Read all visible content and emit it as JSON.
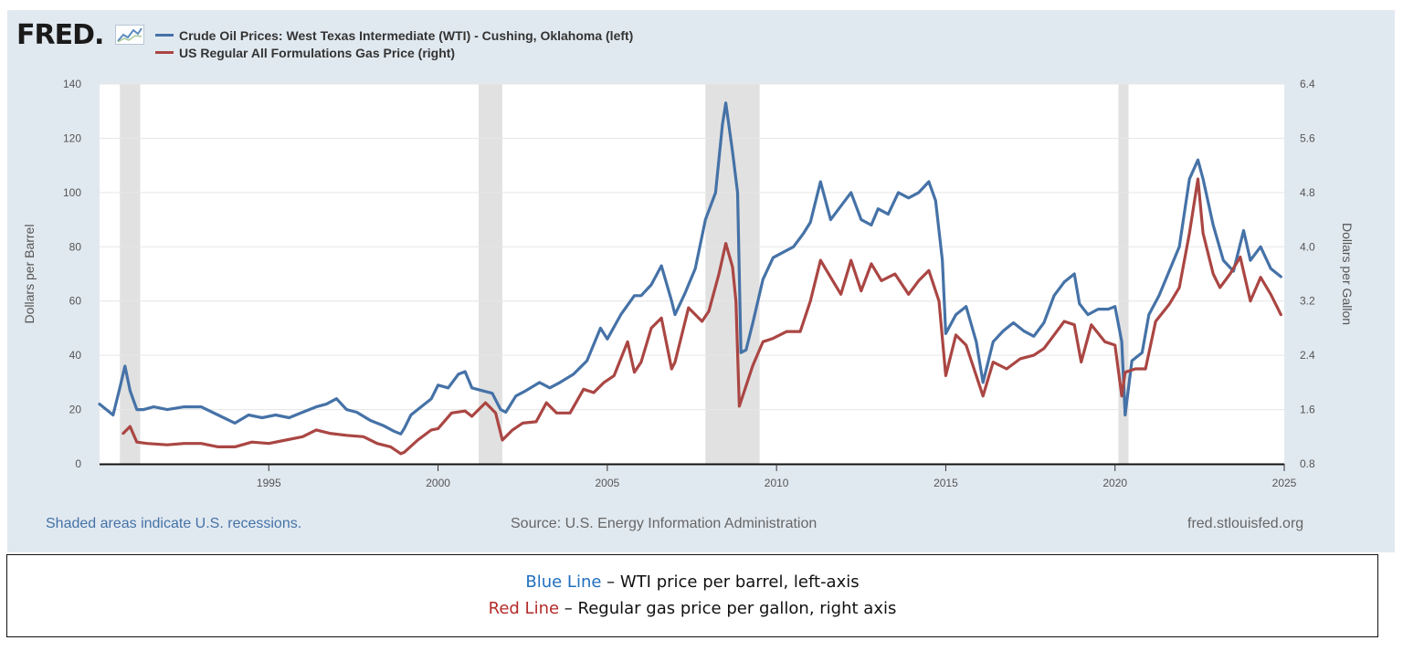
{
  "logo": {
    "text": "FRED",
    "dot": "."
  },
  "legend": [
    {
      "label": "Crude Oil Prices: West Texas Intermediate (WTI) - Cushing, Oklahoma (left)",
      "color": "#4572a7"
    },
    {
      "label": "US Regular All Formulations Gas Price (right)",
      "color": "#aa4643"
    }
  ],
  "footer": {
    "recession_note": "Shaded areas indicate U.S. recessions.",
    "source": "Source: U.S. Energy Information Administration",
    "site": "fred.stlouisfed.org"
  },
  "note_box": {
    "blue_word": "Blue Line",
    "blue_text": " – WTI price per barrel, left-axis",
    "red_word": "Red Line",
    "red_text": " – Regular gas price per gallon, right axis"
  },
  "chart_data": {
    "type": "line",
    "xlabel": "",
    "ylabel_left": "Dollars per Barrel",
    "ylabel_right": "Dollars per Gallon",
    "xlim": [
      1990.0,
      2025.0
    ],
    "ylim_left": [
      0,
      140
    ],
    "ylim_right": [
      0.8,
      6.4
    ],
    "x_ticks": [
      "1995",
      "2000",
      "2005",
      "2010",
      "2015",
      "2020",
      "2025"
    ],
    "y_ticks_left": [
      "0",
      "20",
      "40",
      "60",
      "80",
      "100",
      "120",
      "140"
    ],
    "y_ticks_right": [
      "0.8",
      "1.6",
      "2.4",
      "3.2",
      "4.0",
      "4.8",
      "5.6",
      "6.4"
    ],
    "grid": true,
    "legend_position": "top-left",
    "recessions": [
      [
        1990.6,
        1991.2
      ],
      [
        2001.2,
        2001.9
      ],
      [
        2007.9,
        2009.5
      ],
      [
        2020.1,
        2020.4
      ]
    ],
    "series": [
      {
        "name": "Crude Oil Prices: West Texas Intermediate (WTI) - Cushing, Oklahoma (left)",
        "axis": "left",
        "color": "#4572a7",
        "x": [
          1990.0,
          1990.4,
          1990.6,
          1990.75,
          1990.9,
          1991.1,
          1991.3,
          1991.6,
          1992.0,
          1992.5,
          1993.0,
          1993.5,
          1994.0,
          1994.4,
          1994.8,
          1995.2,
          1995.6,
          1996.0,
          1996.4,
          1996.7,
          1997.0,
          1997.3,
          1997.6,
          1998.0,
          1998.4,
          1998.7,
          1998.9,
          1999.0,
          1999.2,
          1999.5,
          1999.8,
          2000.0,
          2000.3,
          2000.6,
          2000.8,
          2001.0,
          2001.3,
          2001.6,
          2001.85,
          2002.0,
          2002.3,
          2002.6,
          2003.0,
          2003.3,
          2003.6,
          2004.0,
          2004.4,
          2004.8,
          2005.0,
          2005.4,
          2005.8,
          2006.0,
          2006.3,
          2006.6,
          2006.9,
          2007.0,
          2007.3,
          2007.6,
          2007.9,
          2008.2,
          2008.4,
          2008.5,
          2008.7,
          2008.85,
          2008.95,
          2009.1,
          2009.3,
          2009.6,
          2009.9,
          2010.2,
          2010.5,
          2010.8,
          2011.0,
          2011.3,
          2011.6,
          2011.9,
          2012.2,
          2012.5,
          2012.8,
          2013.0,
          2013.3,
          2013.6,
          2013.9,
          2014.2,
          2014.5,
          2014.7,
          2014.9,
          2015.0,
          2015.3,
          2015.6,
          2015.9,
          2016.1,
          2016.4,
          2016.7,
          2017.0,
          2017.3,
          2017.6,
          2017.9,
          2018.2,
          2018.5,
          2018.8,
          2018.95,
          2019.2,
          2019.5,
          2019.8,
          2020.0,
          2020.2,
          2020.3,
          2020.5,
          2020.8,
          2021.0,
          2021.3,
          2021.6,
          2021.9,
          2022.2,
          2022.45,
          2022.6,
          2022.9,
          2023.2,
          2023.5,
          2023.8,
          2024.0,
          2024.3,
          2024.6,
          2024.9
        ],
        "values": [
          22,
          18,
          28,
          36,
          27,
          20,
          20,
          21,
          20,
          21,
          21,
          18,
          15,
          18,
          17,
          18,
          17,
          19,
          21,
          22,
          24,
          20,
          19,
          16,
          14,
          12,
          11,
          13,
          18,
          21,
          24,
          29,
          28,
          33,
          34,
          28,
          27,
          26,
          20,
          19,
          25,
          27,
          30,
          28,
          30,
          33,
          38,
          50,
          46,
          55,
          62,
          62,
          66,
          73,
          60,
          55,
          63,
          72,
          90,
          100,
          125,
          133,
          115,
          100,
          41,
          42,
          52,
          68,
          76,
          78,
          80,
          85,
          89,
          104,
          90,
          95,
          100,
          90,
          88,
          94,
          92,
          100,
          98,
          100,
          104,
          97,
          75,
          48,
          55,
          58,
          45,
          30,
          45,
          49,
          52,
          49,
          47,
          52,
          62,
          67,
          70,
          59,
          55,
          57,
          57,
          58,
          45,
          18,
          38,
          41,
          55,
          62,
          71,
          80,
          105,
          112,
          105,
          88,
          75,
          71,
          86,
          75,
          80,
          72,
          69
        ]
      },
      {
        "name": "US Regular All Formulations Gas Price (right)",
        "axis": "right",
        "color": "#aa4643",
        "x": [
          1990.7,
          1990.9,
          1991.1,
          1991.4,
          1992.0,
          1992.5,
          1993.0,
          1993.5,
          1994.0,
          1994.5,
          1995.0,
          1995.5,
          1996.0,
          1996.4,
          1996.8,
          1997.3,
          1997.8,
          1998.2,
          1998.6,
          1998.9,
          1999.0,
          1999.4,
          1999.8,
          2000.0,
          2000.4,
          2000.8,
          2001.0,
          2001.4,
          2001.7,
          2001.9,
          2002.2,
          2002.5,
          2002.9,
          2003.2,
          2003.5,
          2003.9,
          2004.3,
          2004.6,
          2004.9,
          2005.2,
          2005.6,
          2005.8,
          2006.0,
          2006.3,
          2006.6,
          2006.9,
          2007.0,
          2007.4,
          2007.8,
          2008.0,
          2008.3,
          2008.5,
          2008.7,
          2008.8,
          2008.9,
          2009.0,
          2009.3,
          2009.6,
          2009.9,
          2010.3,
          2010.7,
          2011.0,
          2011.3,
          2011.6,
          2011.9,
          2012.2,
          2012.5,
          2012.8,
          2013.1,
          2013.5,
          2013.9,
          2014.2,
          2014.5,
          2014.8,
          2015.0,
          2015.3,
          2015.6,
          2015.9,
          2016.1,
          2016.4,
          2016.8,
          2017.2,
          2017.6,
          2017.9,
          2018.2,
          2018.5,
          2018.8,
          2019.0,
          2019.3,
          2019.7,
          2020.0,
          2020.2,
          2020.3,
          2020.6,
          2020.9,
          2021.2,
          2021.6,
          2021.9,
          2022.2,
          2022.45,
          2022.6,
          2022.9,
          2023.1,
          2023.4,
          2023.7,
          2024.0,
          2024.3,
          2024.6,
          2024.9
        ],
        "values": [
          1.25,
          1.35,
          1.12,
          1.1,
          1.08,
          1.1,
          1.1,
          1.05,
          1.05,
          1.12,
          1.1,
          1.15,
          1.2,
          1.3,
          1.25,
          1.22,
          1.2,
          1.1,
          1.05,
          0.95,
          0.97,
          1.15,
          1.3,
          1.32,
          1.55,
          1.58,
          1.5,
          1.7,
          1.55,
          1.15,
          1.3,
          1.4,
          1.42,
          1.7,
          1.55,
          1.55,
          1.9,
          1.85,
          2.0,
          2.1,
          2.6,
          2.15,
          2.3,
          2.8,
          2.95,
          2.2,
          2.3,
          3.1,
          2.9,
          3.05,
          3.6,
          4.05,
          3.7,
          3.2,
          1.65,
          1.8,
          2.25,
          2.6,
          2.65,
          2.75,
          2.75,
          3.2,
          3.8,
          3.55,
          3.3,
          3.8,
          3.35,
          3.75,
          3.5,
          3.6,
          3.3,
          3.5,
          3.65,
          3.2,
          2.1,
          2.7,
          2.55,
          2.1,
          1.8,
          2.3,
          2.2,
          2.35,
          2.4,
          2.5,
          2.7,
          2.9,
          2.85,
          2.3,
          2.85,
          2.6,
          2.55,
          1.8,
          2.15,
          2.2,
          2.2,
          2.9,
          3.15,
          3.4,
          4.2,
          5.0,
          4.2,
          3.6,
          3.4,
          3.6,
          3.85,
          3.2,
          3.55,
          3.3,
          3.0
        ]
      }
    ]
  }
}
